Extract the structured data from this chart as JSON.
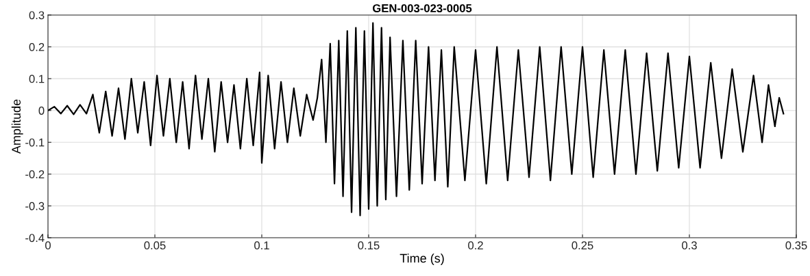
{
  "chart_data": {
    "type": "line",
    "title": "GEN-003-023-0005",
    "xlabel": "Time (s)",
    "ylabel": "Amplitude",
    "xlim": [
      0,
      0.35
    ],
    "xticks": [
      0,
      0.05,
      0.1,
      0.15,
      0.2,
      0.25,
      0.3,
      0.35
    ],
    "ylim": [
      -0.4,
      0.3
    ],
    "yticks": [
      -0.4,
      -0.3,
      -0.2,
      -0.1,
      0,
      0.1,
      0.2,
      0.3
    ],
    "grid": true,
    "marker": "none",
    "line_style": "solid",
    "series": [
      {
        "color": "#000000",
        "x": [
          0,
          0.003,
          0.006,
          0.009,
          0.012,
          0.015,
          0.018,
          0.021,
          0.024,
          0.027,
          0.03,
          0.033,
          0.036,
          0.039,
          0.042,
          0.045,
          0.048,
          0.051,
          0.054,
          0.057,
          0.06,
          0.063,
          0.066,
          0.069,
          0.072,
          0.075,
          0.078,
          0.081,
          0.084,
          0.087,
          0.09,
          0.093,
          0.096,
          0.099,
          0.1,
          0.103,
          0.106,
          0.109,
          0.112,
          0.115,
          0.118,
          0.121,
          0.124,
          0.126,
          0.128,
          0.13,
          0.132,
          0.134,
          0.136,
          0.138,
          0.14,
          0.142,
          0.144,
          0.146,
          0.148,
          0.15,
          0.152,
          0.154,
          0.156,
          0.158,
          0.16,
          0.163,
          0.166,
          0.169,
          0.172,
          0.175,
          0.178,
          0.181,
          0.184,
          0.187,
          0.19,
          0.195,
          0.2,
          0.205,
          0.21,
          0.215,
          0.22,
          0.225,
          0.23,
          0.235,
          0.24,
          0.245,
          0.25,
          0.255,
          0.26,
          0.265,
          0.27,
          0.275,
          0.28,
          0.285,
          0.29,
          0.295,
          0.3,
          0.305,
          0.31,
          0.315,
          0.32,
          0.325,
          0.33,
          0.334,
          0.337,
          0.34,
          0.342,
          0.344
        ],
        "values": [
          0,
          0.012,
          -0.01,
          0.015,
          -0.012,
          0.018,
          -0.01,
          0.05,
          -0.07,
          0.06,
          -0.08,
          0.07,
          -0.09,
          0.1,
          -0.07,
          0.09,
          -0.11,
          0.11,
          -0.08,
          0.1,
          -0.1,
          0.09,
          -0.12,
          0.11,
          -0.09,
          0.1,
          -0.13,
          0.09,
          -0.1,
          0.08,
          -0.12,
          0.1,
          -0.11,
          0.12,
          -0.165,
          0.11,
          -0.12,
          0.09,
          -0.1,
          0.07,
          -0.08,
          0.05,
          -0.03,
          0.04,
          0.16,
          -0.1,
          0.21,
          -0.23,
          0.22,
          -0.27,
          0.25,
          -0.32,
          0.26,
          -0.33,
          0.25,
          -0.31,
          0.275,
          -0.3,
          0.26,
          -0.28,
          0.23,
          -0.27,
          0.22,
          -0.25,
          0.22,
          -0.23,
          0.2,
          -0.22,
          0.19,
          -0.24,
          0.2,
          -0.22,
          0.19,
          -0.23,
          0.2,
          -0.22,
          0.19,
          -0.21,
          0.2,
          -0.22,
          0.2,
          -0.2,
          0.2,
          -0.21,
          0.19,
          -0.2,
          0.19,
          -0.2,
          0.18,
          -0.19,
          0.18,
          -0.18,
          0.17,
          -0.18,
          0.15,
          -0.15,
          0.13,
          -0.13,
          0.11,
          -0.1,
          0.08,
          -0.05,
          0.04,
          -0.01
        ]
      }
    ]
  }
}
